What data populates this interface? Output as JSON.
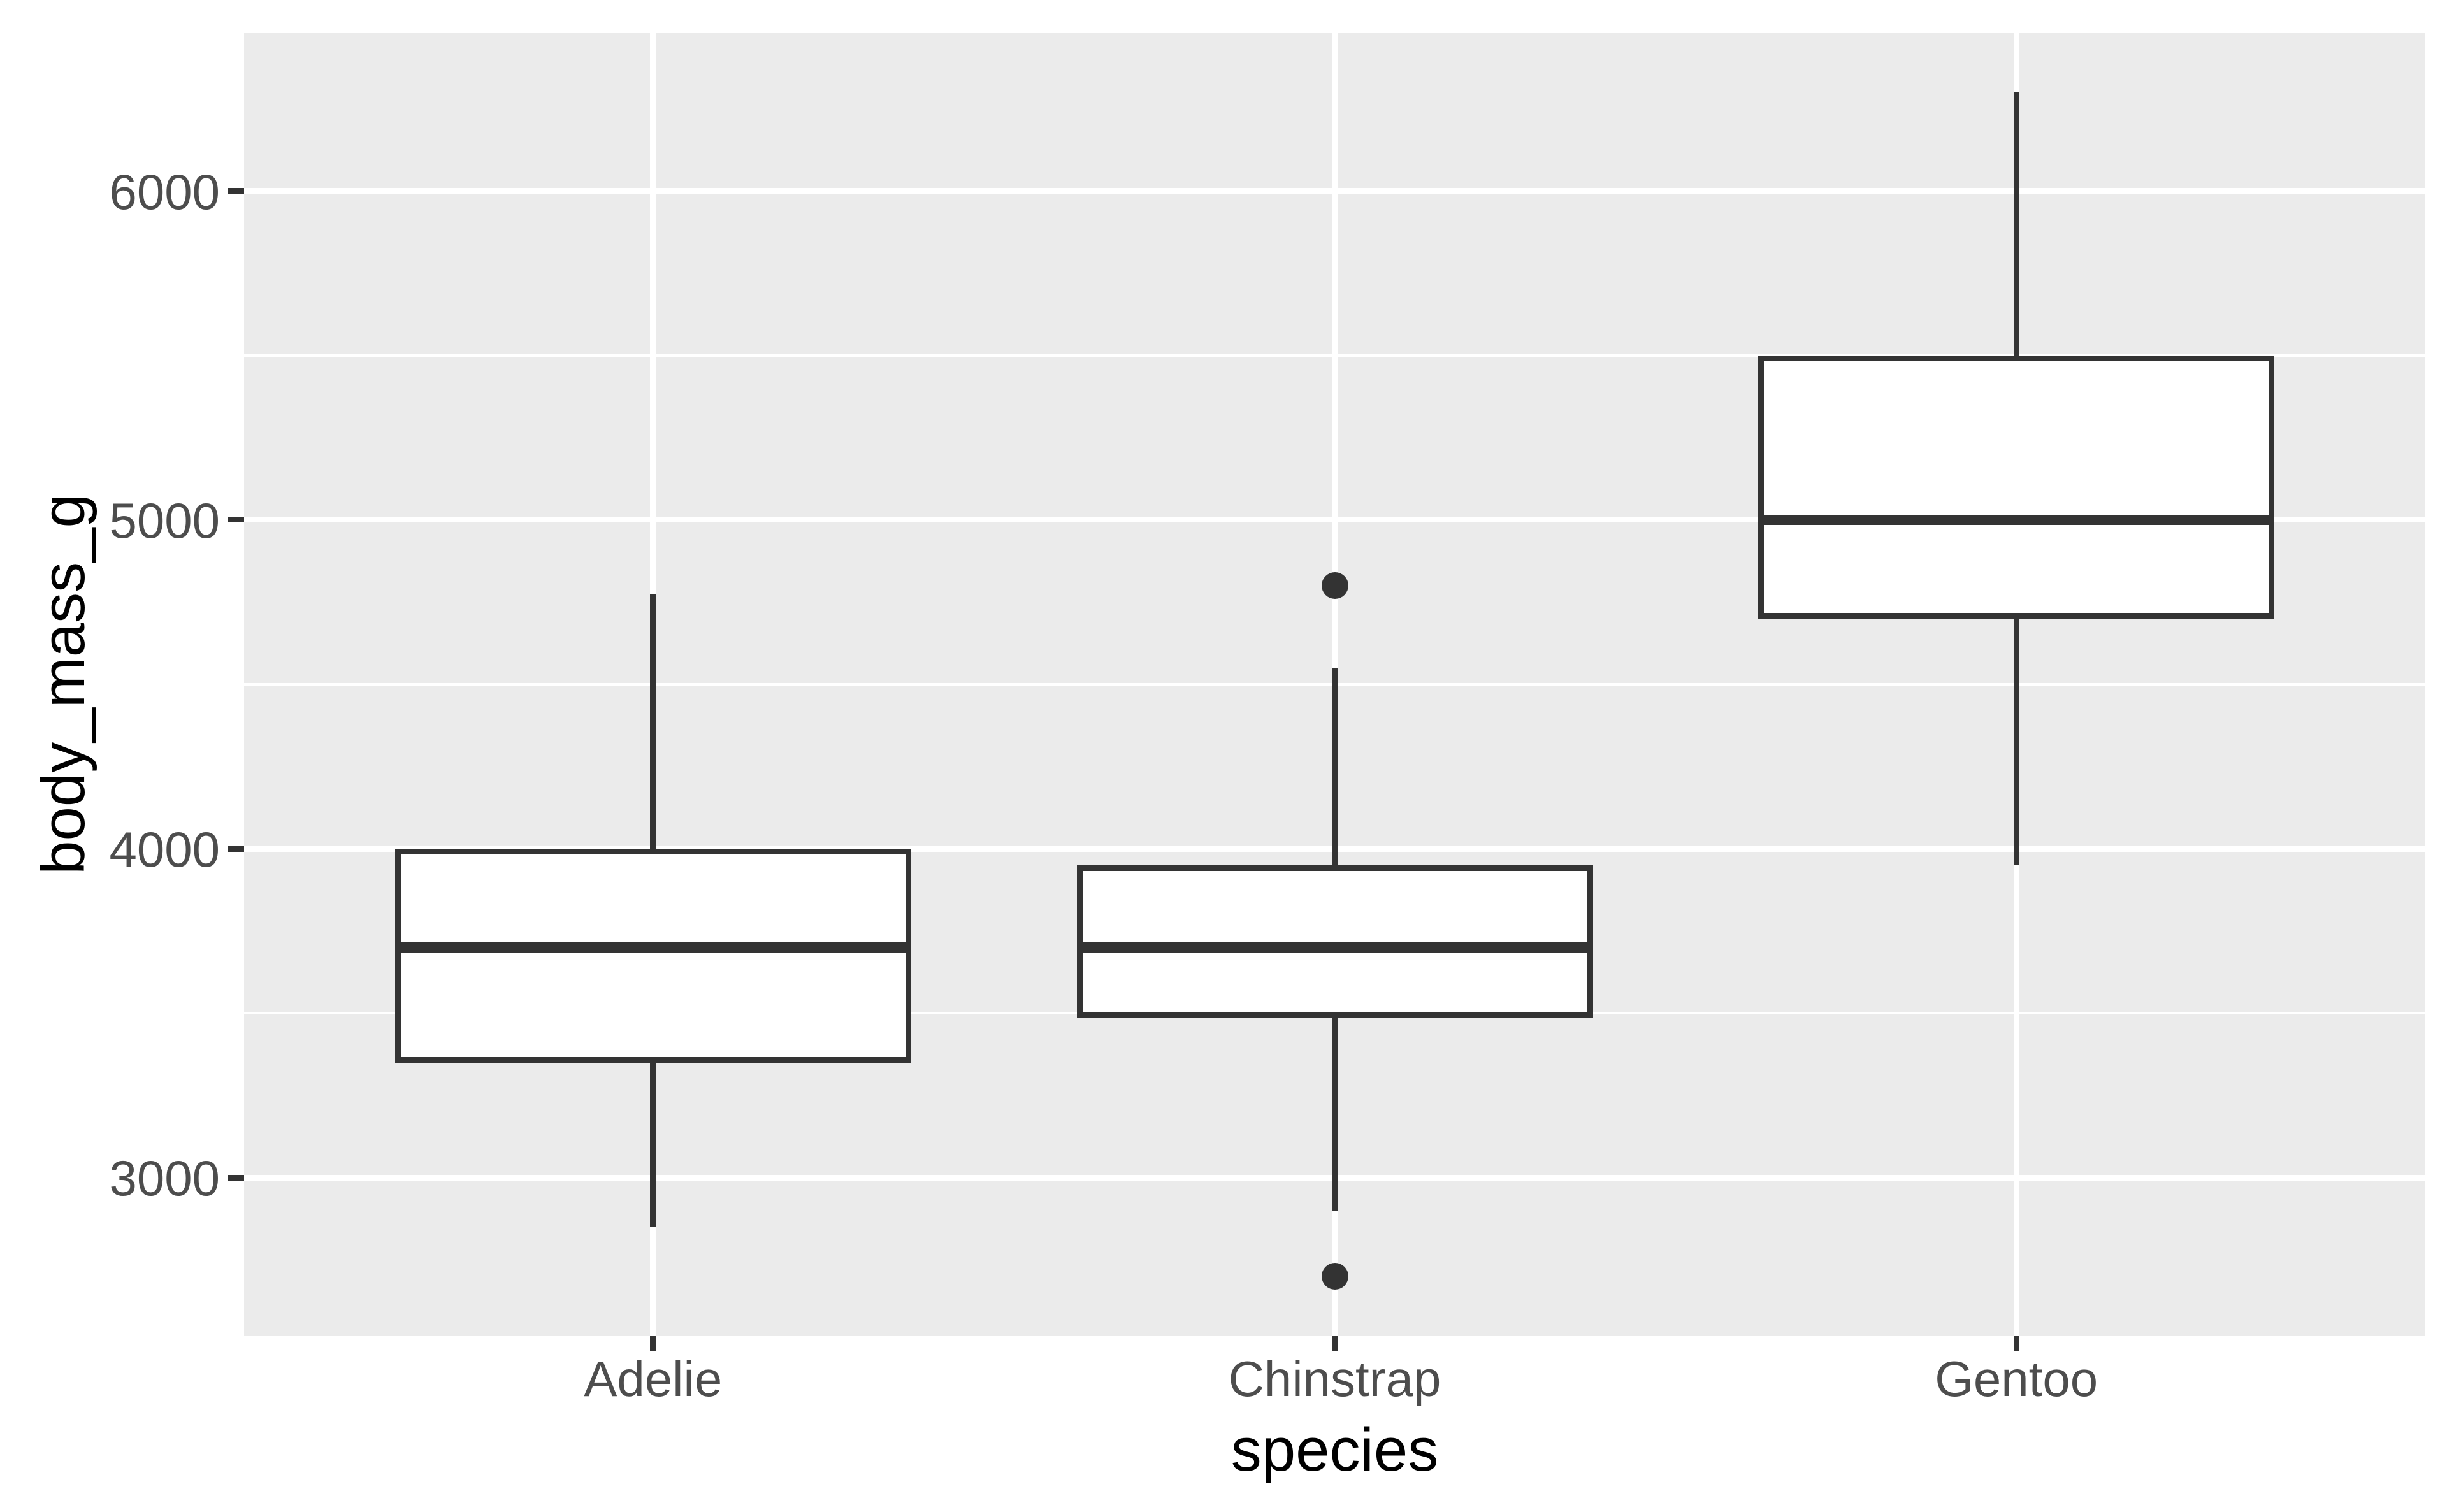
{
  "chart_data": {
    "type": "boxplot",
    "title": "",
    "xlabel": "species",
    "ylabel": "body_mass_g",
    "categories": [
      "Adelie",
      "Chinstrap",
      "Gentoo"
    ],
    "series": [
      {
        "name": "Adelie",
        "whisker_low": 2850,
        "q1": 3350,
        "median": 3700,
        "q3": 4000,
        "whisker_high": 4775,
        "outliers": []
      },
      {
        "name": "Chinstrap",
        "whisker_low": 2900,
        "q1": 3487.5,
        "median": 3700,
        "q3": 3950,
        "whisker_high": 4550,
        "outliers": [
          2700,
          4800
        ]
      },
      {
        "name": "Gentoo",
        "whisker_low": 3950,
        "q1": 4700,
        "median": 5000,
        "q3": 5500,
        "whisker_high": 6300,
        "outliers": []
      }
    ],
    "y_axis": {
      "tick_values": [
        3000,
        4000,
        5000,
        6000
      ],
      "tick_labels": [
        "3000",
        "4000",
        "5000",
        "6000"
      ],
      "minor_tick_values": [
        3500,
        4500,
        5500
      ],
      "ylim": [
        2520,
        6480
      ]
    },
    "x_axis": {
      "positions": [
        1,
        2,
        3
      ],
      "domain": [
        0.4,
        3.6
      ]
    },
    "grid": true,
    "legend": false,
    "theme": "ggplot2-grey"
  },
  "style": {
    "panel_background": "#EBEBEB",
    "plot_background": "#FFFFFF",
    "grid_color": "#FFFFFF",
    "geom_stroke_color": "#333333",
    "box_fill": "#FFFFFF",
    "tick_label_color": "#4D4D4D",
    "axis_title_color": "#000000",
    "tick_mark_color": "#333333"
  }
}
